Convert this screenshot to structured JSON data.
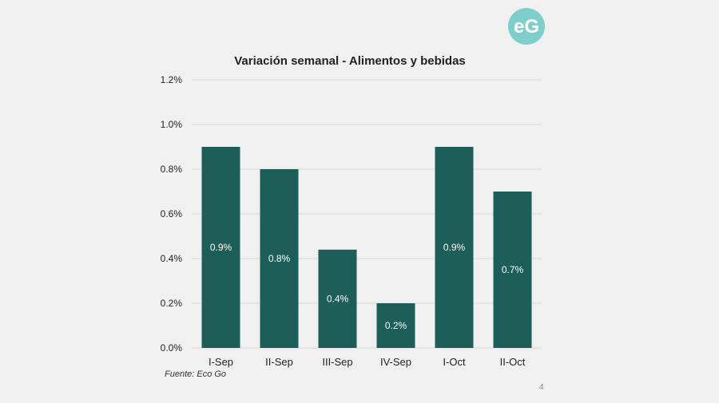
{
  "logo": {
    "text": "eG",
    "color": "#7ecfcc"
  },
  "source_note": "Fuente: Eco Go",
  "page_number": "4",
  "chart_data": {
    "type": "bar",
    "title": "Variación semanal - Alimentos y bebidas",
    "xlabel": "",
    "ylabel": "",
    "categories": [
      "I-Sep",
      "II-Sep",
      "III-Sep",
      "IV-Sep",
      "I-Oct",
      "II-Oct"
    ],
    "values": [
      0.009,
      0.008,
      0.0044,
      0.002,
      0.009,
      0.007
    ],
    "data_labels": [
      "0.9%",
      "0.8%",
      "0.4%",
      "0.2%",
      "0.9%",
      "0.7%"
    ],
    "ylim": [
      0,
      0.012
    ],
    "yticks": [
      0,
      0.002,
      0.004,
      0.006,
      0.008,
      0.01,
      0.012
    ],
    "ytick_labels": [
      "0.0%",
      "0.2%",
      "0.4%",
      "0.6%",
      "0.8%",
      "1.0%",
      "1.2%"
    ],
    "grid": true,
    "bar_color": "#1d5e58",
    "grid_color": "#d9d9d9"
  }
}
